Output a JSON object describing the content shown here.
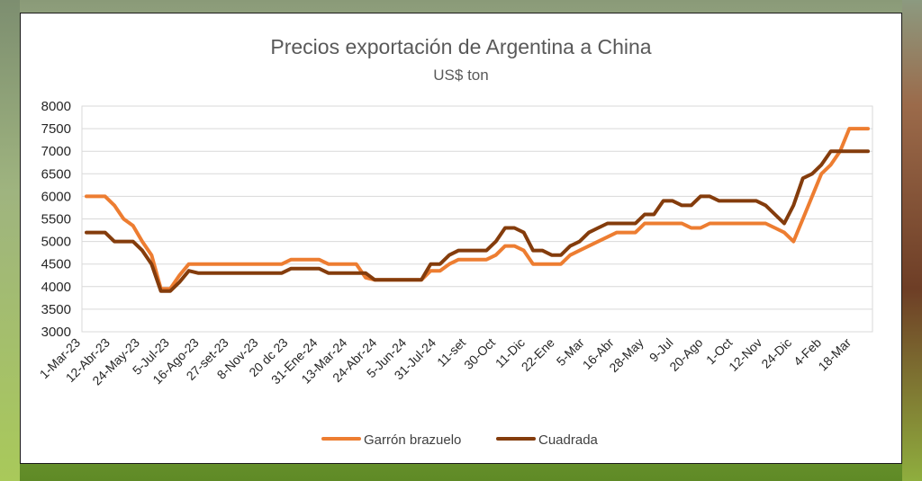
{
  "chart_data": {
    "type": "line",
    "title": "Precios exportación  de Argentina a China",
    "subtitle": "US$ ton",
    "xlabel": "",
    "ylabel": "",
    "ylim": [
      3000,
      8000
    ],
    "yticks": [
      3000,
      3500,
      4000,
      4500,
      5000,
      5500,
      6000,
      6500,
      7000,
      7500,
      8000
    ],
    "x_tick_labels": [
      "1-Mar-23",
      "12-Abr-23",
      "24-May-23",
      "5-Jul-23",
      "16-Ago-23",
      "27-set-23",
      "8-Nov-23",
      "20 dc 23",
      "31-Ene-24",
      "13-Mar-24",
      "24-Abr-24",
      "5-Jun-24",
      "31-Jul-24",
      "11-set",
      "30-Oct",
      "11-Dic",
      "22-Ene",
      "5-Mar",
      "16-Abr",
      "28-May",
      "9-Jul",
      "20-Ago",
      "1-Oct",
      "12-Nov",
      "24-Dic",
      "4-Feb",
      "18-Mar"
    ],
    "grid": true,
    "legend_position": "bottom",
    "series": [
      {
        "name": "Garrón brazuelo",
        "color": "#ED7D31",
        "values": [
          6000,
          6000,
          6000,
          5800,
          5500,
          5350,
          5000,
          4700,
          3950,
          3950,
          4250,
          4500,
          4500,
          4500,
          4500,
          4500,
          4500,
          4500,
          4500,
          4500,
          4500,
          4500,
          4600,
          4600,
          4600,
          4600,
          4500,
          4500,
          4500,
          4500,
          4200,
          4150,
          4150,
          4150,
          4150,
          4150,
          4150,
          4350,
          4350,
          4500,
          4600,
          4600,
          4600,
          4600,
          4700,
          4900,
          4900,
          4800,
          4500,
          4500,
          4500,
          4500,
          4700,
          4800,
          4900,
          5000,
          5100,
          5200,
          5200,
          5200,
          5400,
          5400,
          5400,
          5400,
          5400,
          5300,
          5300,
          5400,
          5400,
          5400,
          5400,
          5400,
          5400,
          5400,
          5300,
          5200,
          5000,
          5500,
          6000,
          6500,
          6700,
          7000,
          7500,
          7500,
          7500
        ]
      },
      {
        "name": "Cuadrada",
        "color": "#843C0C",
        "values": [
          5200,
          5200,
          5200,
          5000,
          5000,
          5000,
          4800,
          4500,
          3900,
          3900,
          4100,
          4350,
          4300,
          4300,
          4300,
          4300,
          4300,
          4300,
          4300,
          4300,
          4300,
          4300,
          4400,
          4400,
          4400,
          4400,
          4300,
          4300,
          4300,
          4300,
          4300,
          4150,
          4150,
          4150,
          4150,
          4150,
          4150,
          4500,
          4500,
          4700,
          4800,
          4800,
          4800,
          4800,
          5000,
          5300,
          5300,
          5200,
          4800,
          4800,
          4700,
          4700,
          4900,
          5000,
          5200,
          5300,
          5400,
          5400,
          5400,
          5400,
          5600,
          5600,
          5900,
          5900,
          5800,
          5800,
          6000,
          6000,
          5900,
          5900,
          5900,
          5900,
          5900,
          5800,
          5600,
          5400,
          5800,
          6400,
          6500,
          6700,
          7000,
          7000,
          7000,
          7000,
          7000
        ]
      }
    ]
  }
}
